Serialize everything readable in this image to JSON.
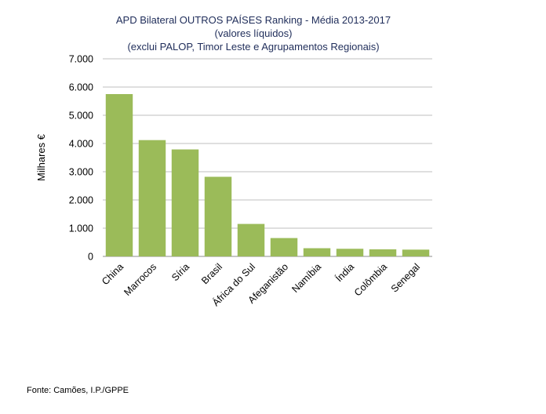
{
  "chart_data": {
    "type": "bar",
    "title": [
      "APD Bilateral OUTROS PAÍSES Ranking - Média 2013-2017",
      "(valores líquidos)",
      "(exclui PALOP, Timor Leste e Agrupamentos Regionais)"
    ],
    "ylabel": "Milhares €",
    "xlabel": "",
    "categories": [
      "China",
      "Marrocos",
      "Síria",
      "Brasil",
      "África do Sul",
      "Afeganistão",
      "Namíbia",
      "Índia",
      "Colômbia",
      "Senegal"
    ],
    "values": [
      5750,
      4120,
      3790,
      2820,
      1150,
      650,
      290,
      270,
      250,
      240
    ],
    "ylim": [
      0,
      7000
    ],
    "yticks": [
      0,
      1000,
      2000,
      3000,
      4000,
      5000,
      6000,
      7000
    ],
    "ytick_labels": [
      "0",
      "1.000",
      "2.000",
      "3.000",
      "4.000",
      "5.000",
      "6.000",
      "7.000"
    ],
    "grid": true,
    "bar_color": "#9bbb59",
    "gridline_color": "#bfbfbf"
  },
  "source": "Fonte: Camões, I.P./GPPE"
}
